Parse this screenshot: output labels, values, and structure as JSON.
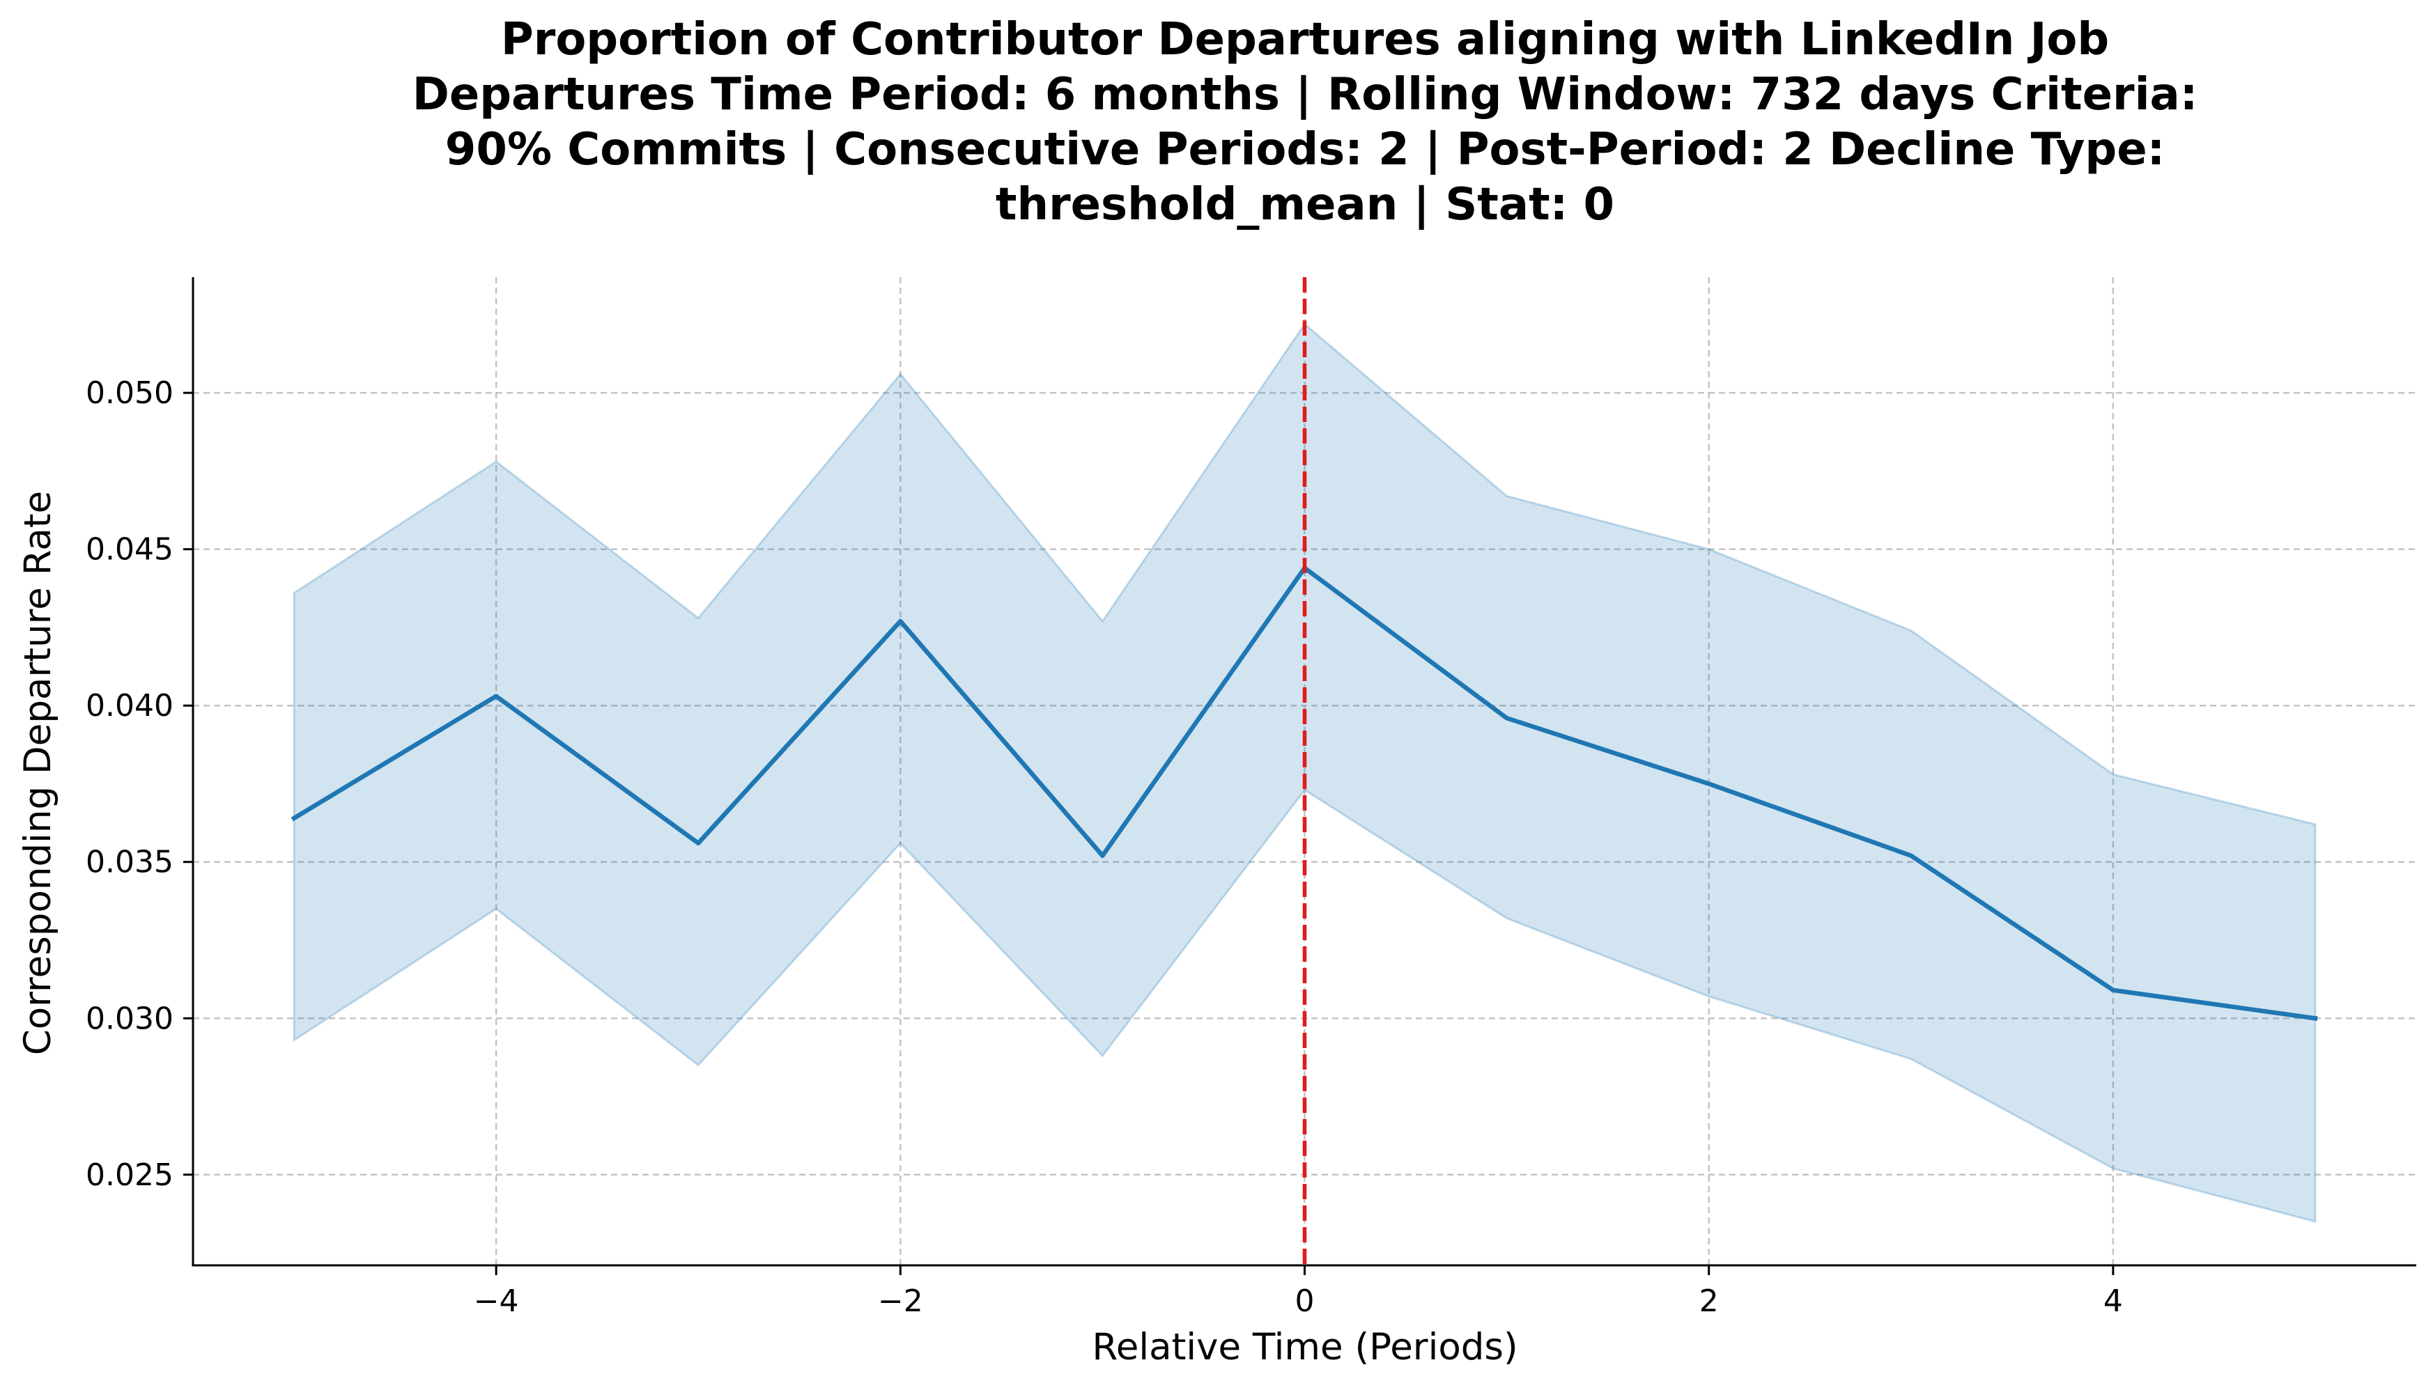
{
  "chart_data": {
    "type": "line",
    "title_lines": [
      "Proportion of Contributor Departures aligning with LinkedIn Job",
      "Departures Time Period: 6 months | Rolling Window: 732 days  Criteria:",
      "90% Commits | Consecutive Periods: 2 | Post-Period: 2 Decline Type:",
      "threshold_mean | Stat: 0"
    ],
    "xlabel": "Relative Time (Periods)",
    "ylabel": "Corresponding Departure Rate",
    "xlim": [
      -5.5,
      5.5
    ],
    "ylim": [
      0.0221,
      0.0537
    ],
    "x_ticks": [
      -4,
      -2,
      0,
      2,
      4
    ],
    "x_tick_labels": [
      "−4",
      "−2",
      "0",
      "2",
      "4"
    ],
    "y_ticks": [
      0.025,
      0.03,
      0.035,
      0.04,
      0.045,
      0.05
    ],
    "y_tick_labels": [
      "0.025",
      "0.030",
      "0.035",
      "0.040",
      "0.045",
      "0.050"
    ],
    "grid": true,
    "series": [
      {
        "x": [
          -5,
          -4,
          -3,
          -2,
          -1,
          0,
          1,
          2,
          3,
          4,
          5
        ],
        "y": [
          0.0364,
          0.0403,
          0.0356,
          0.0427,
          0.0352,
          0.0444,
          0.0396,
          0.0375,
          0.0352,
          0.0309,
          0.03
        ],
        "ci_upper": [
          0.0436,
          0.0478,
          0.0428,
          0.0506,
          0.0427,
          0.0522,
          0.0467,
          0.045,
          0.0424,
          0.0378,
          0.0362
        ],
        "ci_lower": [
          0.0293,
          0.0335,
          0.0285,
          0.0356,
          0.0288,
          0.0373,
          0.0332,
          0.0307,
          0.0287,
          0.0252,
          0.0235
        ]
      }
    ],
    "vertical_line_x": 0,
    "colors": {
      "line": "#1f77b4",
      "band": "#1f77b4",
      "vline": "#e31a1c",
      "grid": "#b0b0b0",
      "axis": "#000000"
    }
  }
}
